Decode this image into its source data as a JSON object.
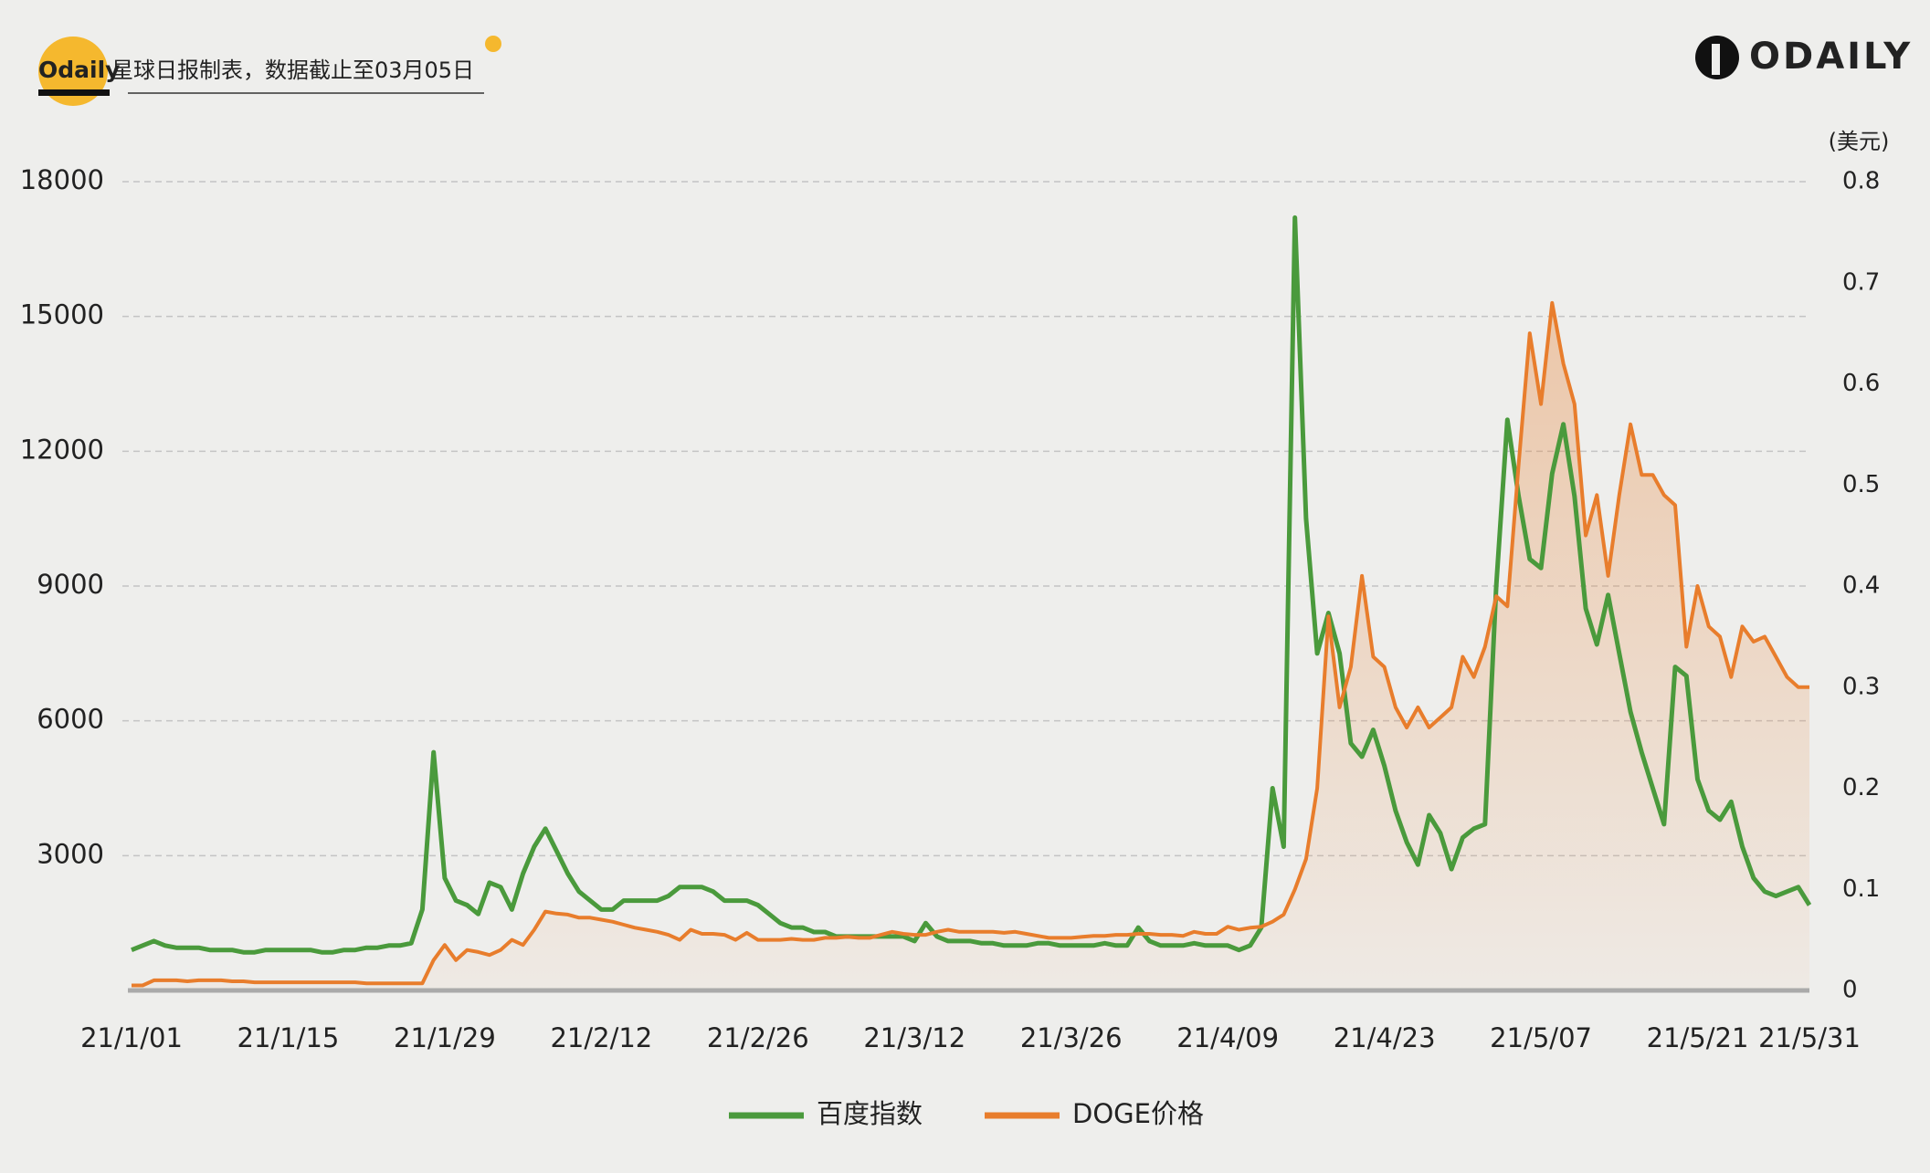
{
  "chart_data": {
    "type": "line",
    "credit": [
      "Odaily",
      "星球日报制表，数据截止至03月05日"
    ],
    "logo": "ODAILY",
    "y2label": "(美元)",
    "categories": [
      "21/1/01",
      null,
      null,
      null,
      null,
      null,
      null,
      null,
      null,
      null,
      null,
      null,
      null,
      null,
      "21/1/15",
      null,
      null,
      null,
      null,
      null,
      null,
      null,
      null,
      null,
      null,
      null,
      null,
      null,
      "21/1/29",
      null,
      null,
      null,
      null,
      null,
      null,
      null,
      null,
      null,
      null,
      null,
      null,
      null,
      "21/2/12",
      null,
      null,
      null,
      null,
      null,
      null,
      null,
      null,
      null,
      null,
      null,
      null,
      null,
      "21/2/26",
      null,
      null,
      null,
      null,
      null,
      null,
      null,
      null,
      null,
      null,
      null,
      null,
      null,
      "21/3/12",
      null,
      null,
      null,
      null,
      null,
      null,
      null,
      null,
      null,
      null,
      null,
      null,
      null,
      "21/3/26",
      null,
      null,
      null,
      null,
      null,
      null,
      null,
      null,
      null,
      null,
      null,
      null,
      null,
      "21/4/09",
      null,
      null,
      null,
      null,
      null,
      null,
      null,
      null,
      null,
      null,
      null,
      null,
      null,
      "21/4/23",
      null,
      null,
      null,
      null,
      null,
      null,
      null,
      null,
      null,
      null,
      null,
      null,
      null,
      "21/5/07",
      null,
      null,
      null,
      null,
      null,
      null,
      null,
      null,
      null,
      null,
      null,
      null,
      null,
      "21/5/21",
      null,
      null,
      null,
      null,
      null,
      null,
      null,
      null,
      null,
      "21/5/31"
    ],
    "series": [
      {
        "name": "百度指数",
        "color": "#4a9a3c",
        "axis": "y",
        "values": [
          900,
          1000,
          1100,
          1000,
          950,
          950,
          950,
          900,
          900,
          900,
          850,
          850,
          900,
          900,
          900,
          900,
          900,
          850,
          850,
          900,
          900,
          950,
          950,
          1000,
          1000,
          1050,
          1800,
          5300,
          2500,
          2000,
          1900,
          1700,
          2400,
          2300,
          1800,
          2600,
          3200,
          3600,
          3100,
          2600,
          2200,
          2000,
          1800,
          1800,
          2000,
          2000,
          2000,
          2000,
          2100,
          2300,
          2300,
          2300,
          2200,
          2000,
          2000,
          2000,
          1900,
          1700,
          1500,
          1400,
          1400,
          1300,
          1300,
          1200,
          1200,
          1200,
          1200,
          1200,
          1200,
          1200,
          1100,
          1500,
          1200,
          1100,
          1100,
          1100,
          1050,
          1050,
          1000,
          1000,
          1000,
          1050,
          1050,
          1000,
          1000,
          1000,
          1000,
          1050,
          1000,
          1000,
          1400,
          1100,
          1000,
          1000,
          1000,
          1050,
          1000,
          1000,
          1000,
          900,
          1000,
          1400,
          4500,
          3200,
          17200,
          10500,
          7500,
          8400,
          7500,
          5500,
          5200,
          5800,
          5000,
          4000,
          3300,
          2800,
          3900,
          3500,
          2700,
          3400,
          3600,
          3700,
          9000,
          12700,
          11000,
          9600,
          9400,
          11500,
          12600,
          11000,
          8500,
          7700,
          8800,
          7500,
          6200,
          5300,
          4500,
          3700,
          7200,
          7000,
          4700,
          4000,
          3800,
          4200,
          3200,
          2500,
          2200,
          2100,
          2200,
          2300,
          1900
        ]
      },
      {
        "name": "DOGE价格",
        "color": "#e87d2c",
        "axis": "y2",
        "values": [
          0.005,
          0.005,
          0.01,
          0.01,
          0.01,
          0.009,
          0.01,
          0.01,
          0.01,
          0.009,
          0.009,
          0.008,
          0.008,
          0.008,
          0.008,
          0.008,
          0.008,
          0.008,
          0.008,
          0.008,
          0.008,
          0.007,
          0.007,
          0.007,
          0.007,
          0.007,
          0.007,
          0.03,
          0.045,
          0.03,
          0.04,
          0.038,
          0.035,
          0.04,
          0.05,
          0.045,
          0.06,
          0.078,
          0.076,
          0.075,
          0.072,
          0.072,
          0.07,
          0.068,
          0.065,
          0.062,
          0.06,
          0.058,
          0.055,
          0.05,
          0.06,
          0.056,
          0.056,
          0.055,
          0.05,
          0.057,
          0.05,
          0.05,
          0.05,
          0.051,
          0.05,
          0.05,
          0.052,
          0.052,
          0.053,
          0.052,
          0.052,
          0.055,
          0.058,
          0.056,
          0.055,
          0.055,
          0.058,
          0.06,
          0.058,
          0.058,
          0.058,
          0.058,
          0.057,
          0.058,
          0.056,
          0.054,
          0.052,
          0.052,
          0.052,
          0.053,
          0.054,
          0.054,
          0.055,
          0.055,
          0.056,
          0.056,
          0.055,
          0.055,
          0.054,
          0.058,
          0.056,
          0.056,
          0.063,
          0.06,
          0.062,
          0.063,
          0.068,
          0.075,
          0.1,
          0.13,
          0.2,
          0.37,
          0.28,
          0.32,
          0.41,
          0.33,
          0.32,
          0.28,
          0.26,
          0.28,
          0.26,
          0.27,
          0.28,
          0.33,
          0.31,
          0.34,
          0.39,
          0.38,
          0.52,
          0.65,
          0.58,
          0.68,
          0.62,
          0.58,
          0.45,
          0.49,
          0.41,
          0.49,
          0.56,
          0.51,
          0.51,
          0.49,
          0.48,
          0.34,
          0.4,
          0.36,
          0.35,
          0.31,
          0.36,
          0.345,
          0.35,
          0.33,
          0.31,
          0.3,
          0.3
        ]
      }
    ],
    "ylim": [
      0,
      18000
    ],
    "yticks": [
      3000,
      6000,
      9000,
      12000,
      15000,
      18000
    ],
    "y2lim": [
      0,
      0.8
    ],
    "y2ticks": [
      0,
      0.1,
      0.2,
      0.3,
      0.4,
      0.5,
      0.6,
      0.7,
      0.8
    ],
    "grid": true
  }
}
